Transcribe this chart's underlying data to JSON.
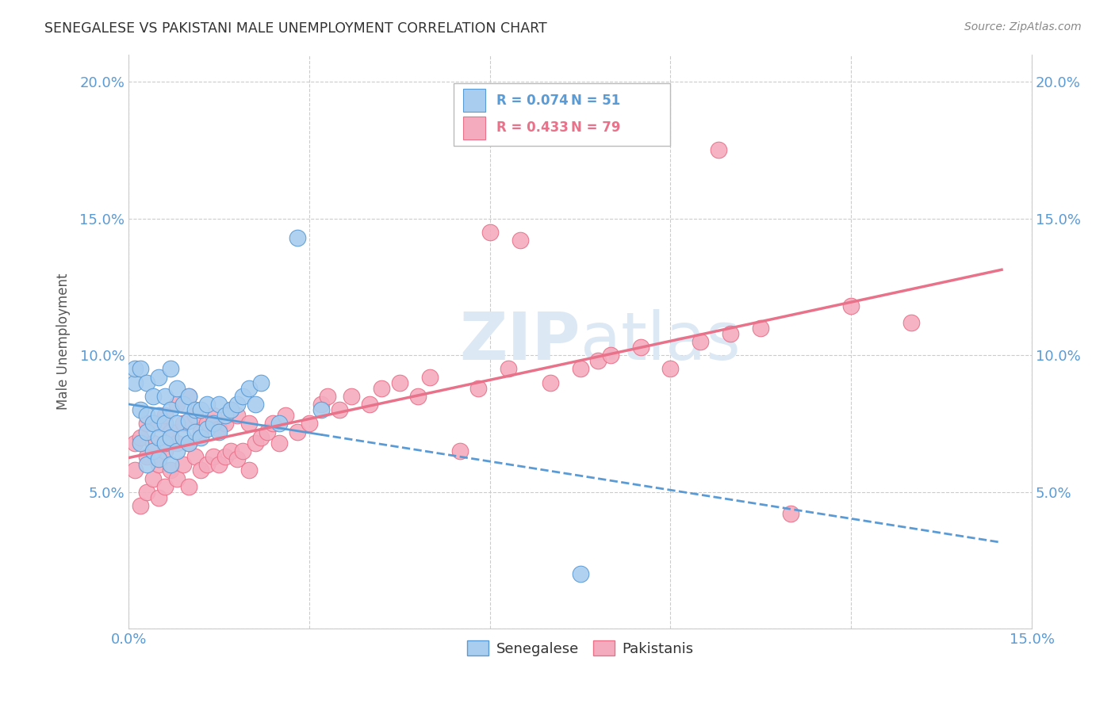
{
  "title": "SENEGALESE VS PAKISTANI MALE UNEMPLOYMENT CORRELATION CHART",
  "source": "Source: ZipAtlas.com",
  "ylabel": "Male Unemployment",
  "xlim": [
    0.0,
    0.15
  ],
  "ylim": [
    0.0,
    0.21
  ],
  "legend_blue_r": "R = 0.074",
  "legend_blue_n": "N = 51",
  "legend_pink_r": "R = 0.433",
  "legend_pink_n": "N = 79",
  "blue_color": "#A8CDEF",
  "pink_color": "#F5ABBE",
  "blue_line_color": "#5B9BD5",
  "pink_line_color": "#E8728A",
  "watermark_color": "#DDE8F5"
}
